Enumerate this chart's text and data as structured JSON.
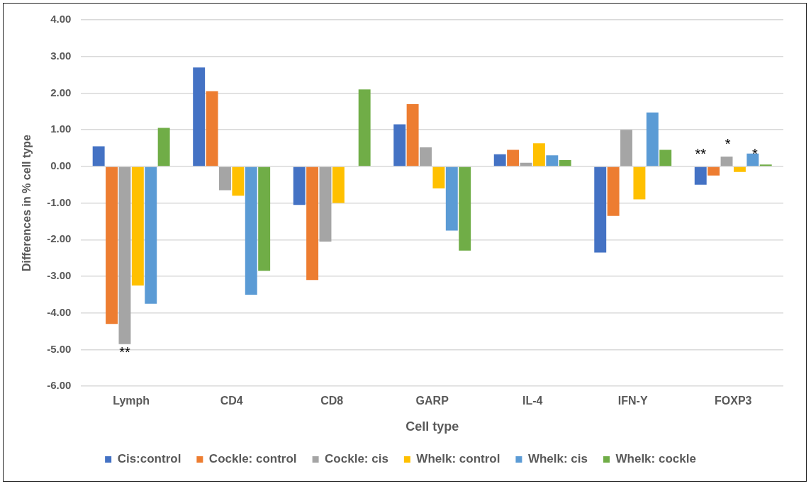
{
  "chart_data": {
    "type": "bar",
    "xlabel": "Cell type",
    "ylabel": "Differences in % cell type",
    "categories": [
      "Lymph",
      "CD4",
      "CD8",
      "GARP",
      "IL-4",
      "IFN-Y",
      "FOXP3"
    ],
    "series": [
      {
        "name": "Cis:control",
        "color": "#4472c4",
        "values": [
          0.55,
          2.7,
          -1.05,
          1.15,
          0.33,
          -2.35,
          -0.5
        ]
      },
      {
        "name": "Cockle: control",
        "color": "#ed7d31",
        "values": [
          -4.3,
          2.05,
          -3.1,
          1.7,
          0.45,
          -1.35,
          -0.25
        ]
      },
      {
        "name": "Cockle: cis",
        "color": "#a5a5a5",
        "values": [
          -4.85,
          -0.65,
          -2.05,
          0.52,
          0.1,
          1.0,
          0.27
        ]
      },
      {
        "name": "Whelk: control",
        "color": "#ffc000",
        "values": [
          -3.25,
          -0.8,
          -1.0,
          -0.6,
          0.63,
          -0.9,
          -0.15
        ]
      },
      {
        "name": "Whelk: cis",
        "color": "#5b9bd5",
        "values": [
          -3.75,
          -3.5,
          0,
          -1.75,
          0.3,
          1.47,
          0.35
        ]
      },
      {
        "name": "Whelk: cockle",
        "color": "#70ad47",
        "values": [
          1.05,
          -2.85,
          2.1,
          -2.3,
          0.17,
          0.45,
          0.05
        ]
      }
    ],
    "ylim": [
      -6,
      4
    ],
    "yticks": [
      {
        "value": -6,
        "label": "-6.00"
      },
      {
        "value": -5,
        "label": "-5.00"
      },
      {
        "value": -4,
        "label": "-4.00"
      },
      {
        "value": -3,
        "label": "-3.00"
      },
      {
        "value": -2,
        "label": "-2.00"
      },
      {
        "value": -1,
        "label": "-1.00"
      },
      {
        "value": 0,
        "label": "0.00"
      },
      {
        "value": 1,
        "label": "1.00"
      },
      {
        "value": 2,
        "label": "2.00"
      },
      {
        "value": 3,
        "label": "3.00"
      },
      {
        "value": 4,
        "label": "4.00"
      }
    ],
    "grid": "y",
    "legend": "bottom",
    "annotations": [
      {
        "text": "**",
        "x": "Lymph",
        "y": -4.85
      },
      "**",
      "*",
      "*"
    ]
  }
}
